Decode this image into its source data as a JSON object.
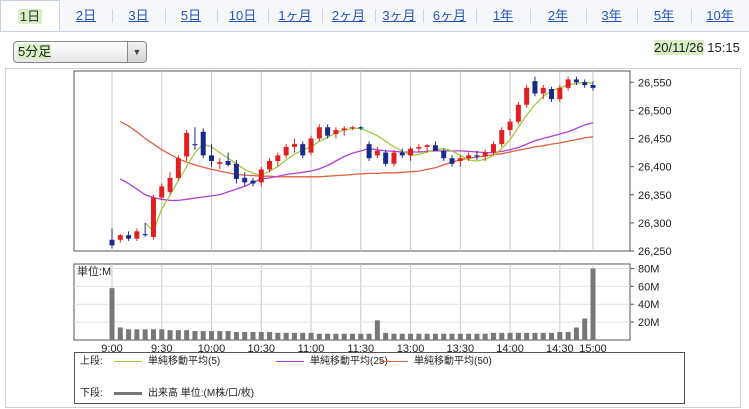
{
  "tabs": [
    {
      "label": "1日",
      "active": true
    },
    {
      "label": "2日"
    },
    {
      "label": "3日"
    },
    {
      "label": "5日"
    },
    {
      "label": "10日"
    },
    {
      "label": "1ヶ月"
    },
    {
      "label": "2ヶ月"
    },
    {
      "label": "3ヶ月"
    },
    {
      "label": "6ヶ月"
    },
    {
      "label": "1年"
    },
    {
      "label": "2年"
    },
    {
      "label": "3年"
    },
    {
      "label": "5年"
    },
    {
      "label": "10年"
    }
  ],
  "interval_select": {
    "value": "5分足"
  },
  "timestamp": {
    "date": "20/11/26",
    "time": "15:15"
  },
  "colors": {
    "up": "#e02020",
    "down": "#1a2a8a",
    "ma5": "#9ccc3a",
    "ma25": "#b040d8",
    "ma50": "#e06040",
    "volume": "#777777",
    "grid": "#c8c8c8"
  },
  "chart_data": [
    {
      "type": "candlestick",
      "ylim": [
        26250,
        26570
      ],
      "y_ticks": [
        "26,550",
        "26,500",
        "26,450",
        "26,400",
        "26,350",
        "26,300",
        "26,250"
      ],
      "y_tick_values": [
        26550,
        26500,
        26450,
        26400,
        26350,
        26300,
        26250
      ],
      "candles": [
        [
          26270,
          26290,
          26255,
          26260
        ],
        [
          26270,
          26280,
          26265,
          26278
        ],
        [
          26278,
          26285,
          26268,
          26272
        ],
        [
          26272,
          26290,
          26268,
          26285
        ],
        [
          26280,
          26300,
          26275,
          26278
        ],
        [
          26275,
          26350,
          26270,
          26345
        ],
        [
          26345,
          26370,
          26340,
          26365
        ],
        [
          26355,
          26390,
          26350,
          26380
        ],
        [
          26380,
          26420,
          26375,
          26415
        ],
        [
          26418,
          26465,
          26410,
          26460
        ],
        [
          26440,
          26470,
          26430,
          26438
        ],
        [
          26462,
          26468,
          26415,
          26420
        ],
        [
          26420,
          26440,
          26400,
          26410
        ],
        [
          26405,
          26415,
          26395,
          26408
        ],
        [
          26410,
          26425,
          26400,
          26403
        ],
        [
          26405,
          26412,
          26370,
          26378
        ],
        [
          26380,
          26390,
          26365,
          26372
        ],
        [
          26375,
          26380,
          26365,
          26370
        ],
        [
          26372,
          26400,
          26365,
          26395
        ],
        [
          26395,
          26415,
          26390,
          26410
        ],
        [
          26410,
          26425,
          26400,
          26420
        ],
        [
          26420,
          26440,
          26415,
          26435
        ],
        [
          26435,
          26450,
          26425,
          26440
        ],
        [
          26440,
          26445,
          26415,
          26420
        ],
        [
          26425,
          26455,
          26420,
          26450
        ],
        [
          26450,
          26475,
          26445,
          26470
        ],
        [
          26470,
          26475,
          26450,
          26455
        ],
        [
          26458,
          26470,
          26450,
          26465
        ],
        [
          26465,
          26472,
          26455,
          26468
        ],
        [
          26468,
          26472,
          26465,
          26470
        ],
        [
          26470,
          26472,
          26465,
          26468
        ],
        [
          26440,
          26445,
          26410,
          26415
        ],
        [
          26420,
          26435,
          26415,
          26428
        ],
        [
          26425,
          26430,
          26400,
          26405
        ],
        [
          26405,
          26430,
          26400,
          26425
        ],
        [
          26425,
          26432,
          26415,
          26420
        ],
        [
          26420,
          26435,
          26410,
          26432
        ],
        [
          26432,
          26440,
          26425,
          26435
        ],
        [
          26435,
          26440,
          26425,
          26438
        ],
        [
          26438,
          26445,
          26430,
          26428
        ],
        [
          26428,
          26432,
          26410,
          26415
        ],
        [
          26415,
          26420,
          26400,
          26405
        ],
        [
          26410,
          26420,
          26400,
          26415
        ],
        [
          26415,
          26425,
          26410,
          26420
        ],
        [
          26420,
          26428,
          26412,
          26418
        ],
        [
          26418,
          26430,
          26410,
          26425
        ],
        [
          26425,
          26445,
          26420,
          26440
        ],
        [
          26440,
          26470,
          26435,
          26465
        ],
        [
          26465,
          26485,
          26455,
          26480
        ],
        [
          26480,
          26515,
          26475,
          26510
        ],
        [
          26510,
          26545,
          26505,
          26540
        ],
        [
          26552,
          26560,
          26525,
          26530
        ],
        [
          26530,
          26545,
          26520,
          26540
        ],
        [
          26538,
          26542,
          26515,
          26520
        ],
        [
          26520,
          26545,
          26515,
          26540
        ],
        [
          26540,
          26560,
          26535,
          26555
        ],
        [
          26555,
          26560,
          26545,
          26550
        ],
        [
          26550,
          26555,
          26540,
          26545
        ],
        [
          26545,
          26552,
          26535,
          26540
        ]
      ],
      "ma5": [
        null,
        null,
        null,
        null,
        26300,
        26285,
        26325,
        26350,
        26375,
        26400,
        26425,
        26440,
        26435,
        26425,
        26415,
        26405,
        26395,
        26388,
        26385,
        26392,
        26400,
        26412,
        26422,
        26430,
        26435,
        26445,
        26452,
        26460,
        26465,
        26468,
        26468,
        26462,
        26455,
        26445,
        26435,
        26428,
        26420,
        26422,
        26426,
        26430,
        26432,
        26428,
        26420,
        26412,
        26410,
        26413,
        26420,
        26432,
        26448,
        26470,
        26492,
        26510,
        26525,
        26535,
        26540,
        26545,
        26548,
        26550,
        26548
      ],
      "ma25": [
        null,
        26378,
        26370,
        26360,
        26350,
        26345,
        26342,
        26340,
        26340,
        26342,
        26344,
        26346,
        26348,
        26350,
        26355,
        26360,
        26365,
        26372,
        26378,
        26380,
        26383,
        26386,
        26388,
        26390,
        26392,
        26396,
        26402,
        26410,
        26418,
        26424,
        26428,
        26432,
        26430,
        26428,
        26427,
        26426,
        26426,
        26426,
        26427,
        26428,
        26428,
        26428,
        26428,
        26427,
        26426,
        26425,
        26425,
        26427,
        26430,
        26434,
        26440,
        26446,
        26450,
        26454,
        26458,
        26462,
        26468,
        26474,
        26478
      ],
      "ma50": [
        null,
        26480,
        26472,
        26462,
        26450,
        26440,
        26430,
        26422,
        26414,
        26408,
        26403,
        26399,
        26395,
        26392,
        26389,
        26386,
        26385,
        26384,
        26383,
        26383,
        26382,
        26382,
        26382,
        26382,
        26382,
        26382,
        26383,
        26384,
        26385,
        26386,
        26387,
        26388,
        26388,
        26389,
        26389,
        26390,
        26391,
        26392,
        26395,
        26398,
        26403,
        26408,
        26412,
        26415,
        26417,
        26419,
        26421,
        26423,
        26426,
        26429,
        26432,
        26435,
        26437,
        26440,
        26442,
        26445,
        26448,
        26451,
        26453
      ]
    },
    {
      "type": "bar",
      "title": "単位:M",
      "ylim": [
        0,
        85
      ],
      "y_ticks": [
        "80M",
        "60M",
        "40M",
        "20M"
      ],
      "y_tick_values": [
        80,
        60,
        40,
        20
      ],
      "values": [
        58,
        14,
        12,
        12,
        12,
        12,
        12,
        11,
        11,
        11,
        10,
        10,
        10,
        10,
        10,
        9,
        9,
        9,
        9,
        9,
        8,
        8,
        8,
        8,
        8,
        7,
        7,
        7,
        7,
        7,
        7,
        7,
        22,
        8,
        7,
        7,
        7,
        7,
        7,
        7,
        7,
        7,
        7,
        7,
        7,
        7,
        8,
        8,
        8,
        8,
        8,
        8,
        8,
        8,
        9,
        9,
        14,
        24,
        80
      ]
    }
  ],
  "x_tick_labels": [
    "9:00",
    "9:30",
    "10:00",
    "10:30",
    "11:00",
    "11:30",
    "13:00",
    "13:30",
    "14:00",
    "14:30",
    "15:00"
  ],
  "legend": {
    "upper_label": "上段:",
    "lower_label": "下段:",
    "ma5": "単純移動平均(5)",
    "ma25": "単純移動平均(25)",
    "ma50": "単純移動平均(50)",
    "volume": "出来高 単位:(M株/口/枚)"
  }
}
